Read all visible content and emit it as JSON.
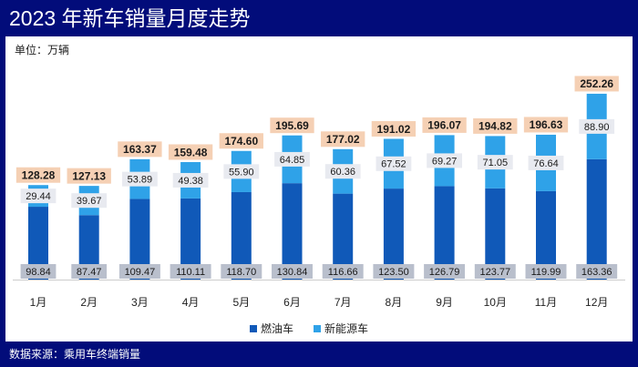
{
  "header": {
    "title": "2023 年新车销量月度走势"
  },
  "unit_label": "单位：万辆",
  "footer": {
    "source": "数据来源：乘用车终端销量"
  },
  "colors": {
    "background": "#020c7a",
    "fuel": "#1059b8",
    "nev": "#2fa2e8",
    "total_label_bg": "#f5d0b4",
    "value_label_bg": "#e8eaf0",
    "bottom_label_bg": "#b9bfcc"
  },
  "chart_data": {
    "type": "bar",
    "stacked": true,
    "title": "2023 年新车销量月度走势",
    "xlabel": "",
    "ylabel": "单位：万辆",
    "categories": [
      "1月",
      "2月",
      "3月",
      "4月",
      "5月",
      "6月",
      "7月",
      "8月",
      "9月",
      "10月",
      "11月",
      "12月"
    ],
    "series": [
      {
        "name": "燃油车",
        "color": "#1059b8",
        "values": [
          98.84,
          87.47,
          109.47,
          110.11,
          118.7,
          130.84,
          116.66,
          123.5,
          126.79,
          123.77,
          119.99,
          163.36
        ]
      },
      {
        "name": "新能源车",
        "color": "#2fa2e8",
        "values": [
          29.44,
          39.67,
          53.89,
          49.38,
          55.9,
          64.85,
          60.36,
          67.52,
          69.27,
          71.05,
          76.64,
          88.9
        ]
      }
    ],
    "totals": [
      128.28,
      127.13,
      163.37,
      159.48,
      174.6,
      195.69,
      177.02,
      191.02,
      196.07,
      194.82,
      196.63,
      252.26
    ],
    "legend": [
      "燃油车",
      "新能源车"
    ],
    "legend_position": "bottom",
    "ylim": [
      0,
      260
    ],
    "grid": false
  }
}
